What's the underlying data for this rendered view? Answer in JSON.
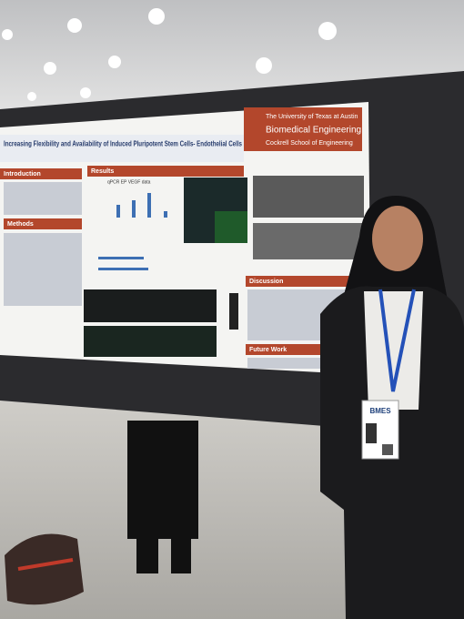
{
  "poster": {
    "title": "Increasing Flexibility and Availability of Induced Pluripotent Stem Cells- Endothelial Cells",
    "institution": [
      "The University of Texas at Austin",
      "Biomedical Engineering",
      "Cockrell School of Engineering"
    ],
    "sections": [
      "Introduction",
      "Results",
      "Methods",
      "Discussion",
      "Future Work"
    ],
    "figure_title": "qPCR EP VEGF data"
  },
  "badge": {
    "title": "BMES"
  }
}
